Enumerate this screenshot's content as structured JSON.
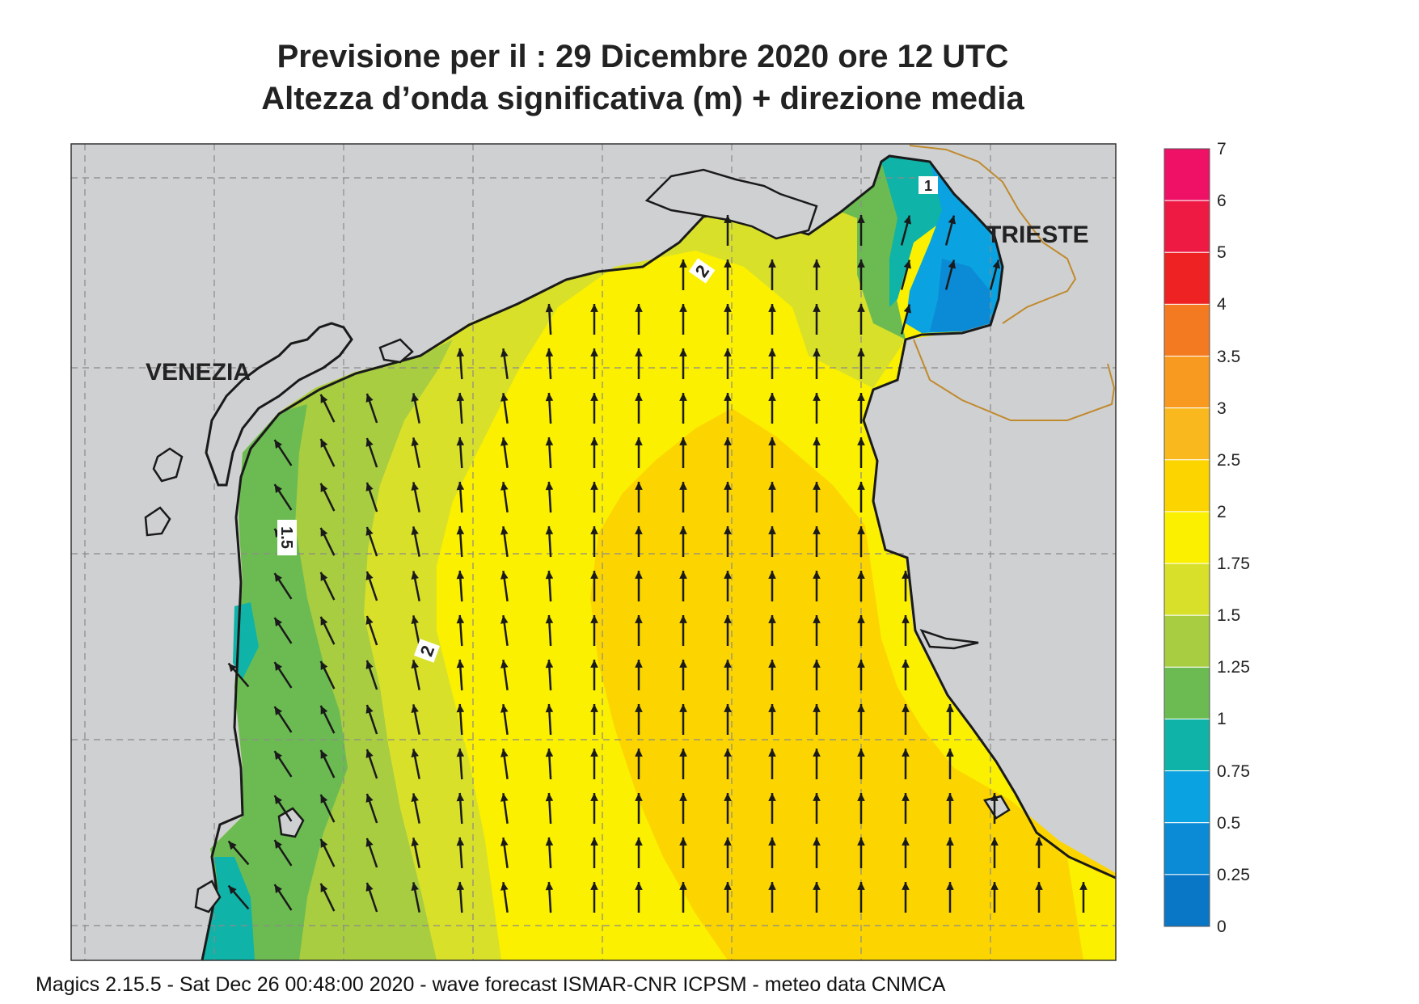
{
  "header": {
    "title_line1": "Previsione per il  :  29 Dicembre  2020   ore 12 UTC",
    "title_line2": "Altezza d’onda significativa (m) + direzione media"
  },
  "map": {
    "place_labels": {
      "venezia": "VENEZIA",
      "trieste": "TRIESTE"
    },
    "contour_labels": [
      "2",
      "1.5",
      "2",
      "1"
    ],
    "arrow_direction": "north-north-west (mean wave direction)"
  },
  "legend": {
    "levels": [
      {
        "value": "7",
        "color": "#ee1166"
      },
      {
        "value": "6",
        "color": "#ee1a44"
      },
      {
        "value": "5",
        "color": "#ee2222"
      },
      {
        "value": "4",
        "color": "#f47a22"
      },
      {
        "value": "3.5",
        "color": "#f79a1f"
      },
      {
        "value": "3",
        "color": "#f9b81d"
      },
      {
        "value": "2.5",
        "color": "#fcd500"
      },
      {
        "value": "2",
        "color": "#fbf000"
      },
      {
        "value": "1.75",
        "color": "#d8e02a"
      },
      {
        "value": "1.5",
        "color": "#a8cd40"
      },
      {
        "value": "1.25",
        "color": "#6cbb52"
      },
      {
        "value": "1",
        "color": "#0fb3a8"
      },
      {
        "value": "0.75",
        "color": "#0aa2e0"
      },
      {
        "value": "0.5",
        "color": "#0b8bd6"
      },
      {
        "value": "0.25",
        "color": "#0a77c6"
      },
      {
        "value": "0",
        "color": "#0763b3"
      }
    ]
  },
  "footer": {
    "text": "Magics 2.15.5 - Sat Dec 26 00:48:00 2020 - wave forecast  ISMAR-CNR  ICPSM - meteo data   CNMCA"
  },
  "colors": {
    "land": "#cfd0d2",
    "grid": "#8a8a8a",
    "coast": "#1a1a1a",
    "border": "#c08a2e",
    "arrow": "#1a1a1a"
  }
}
